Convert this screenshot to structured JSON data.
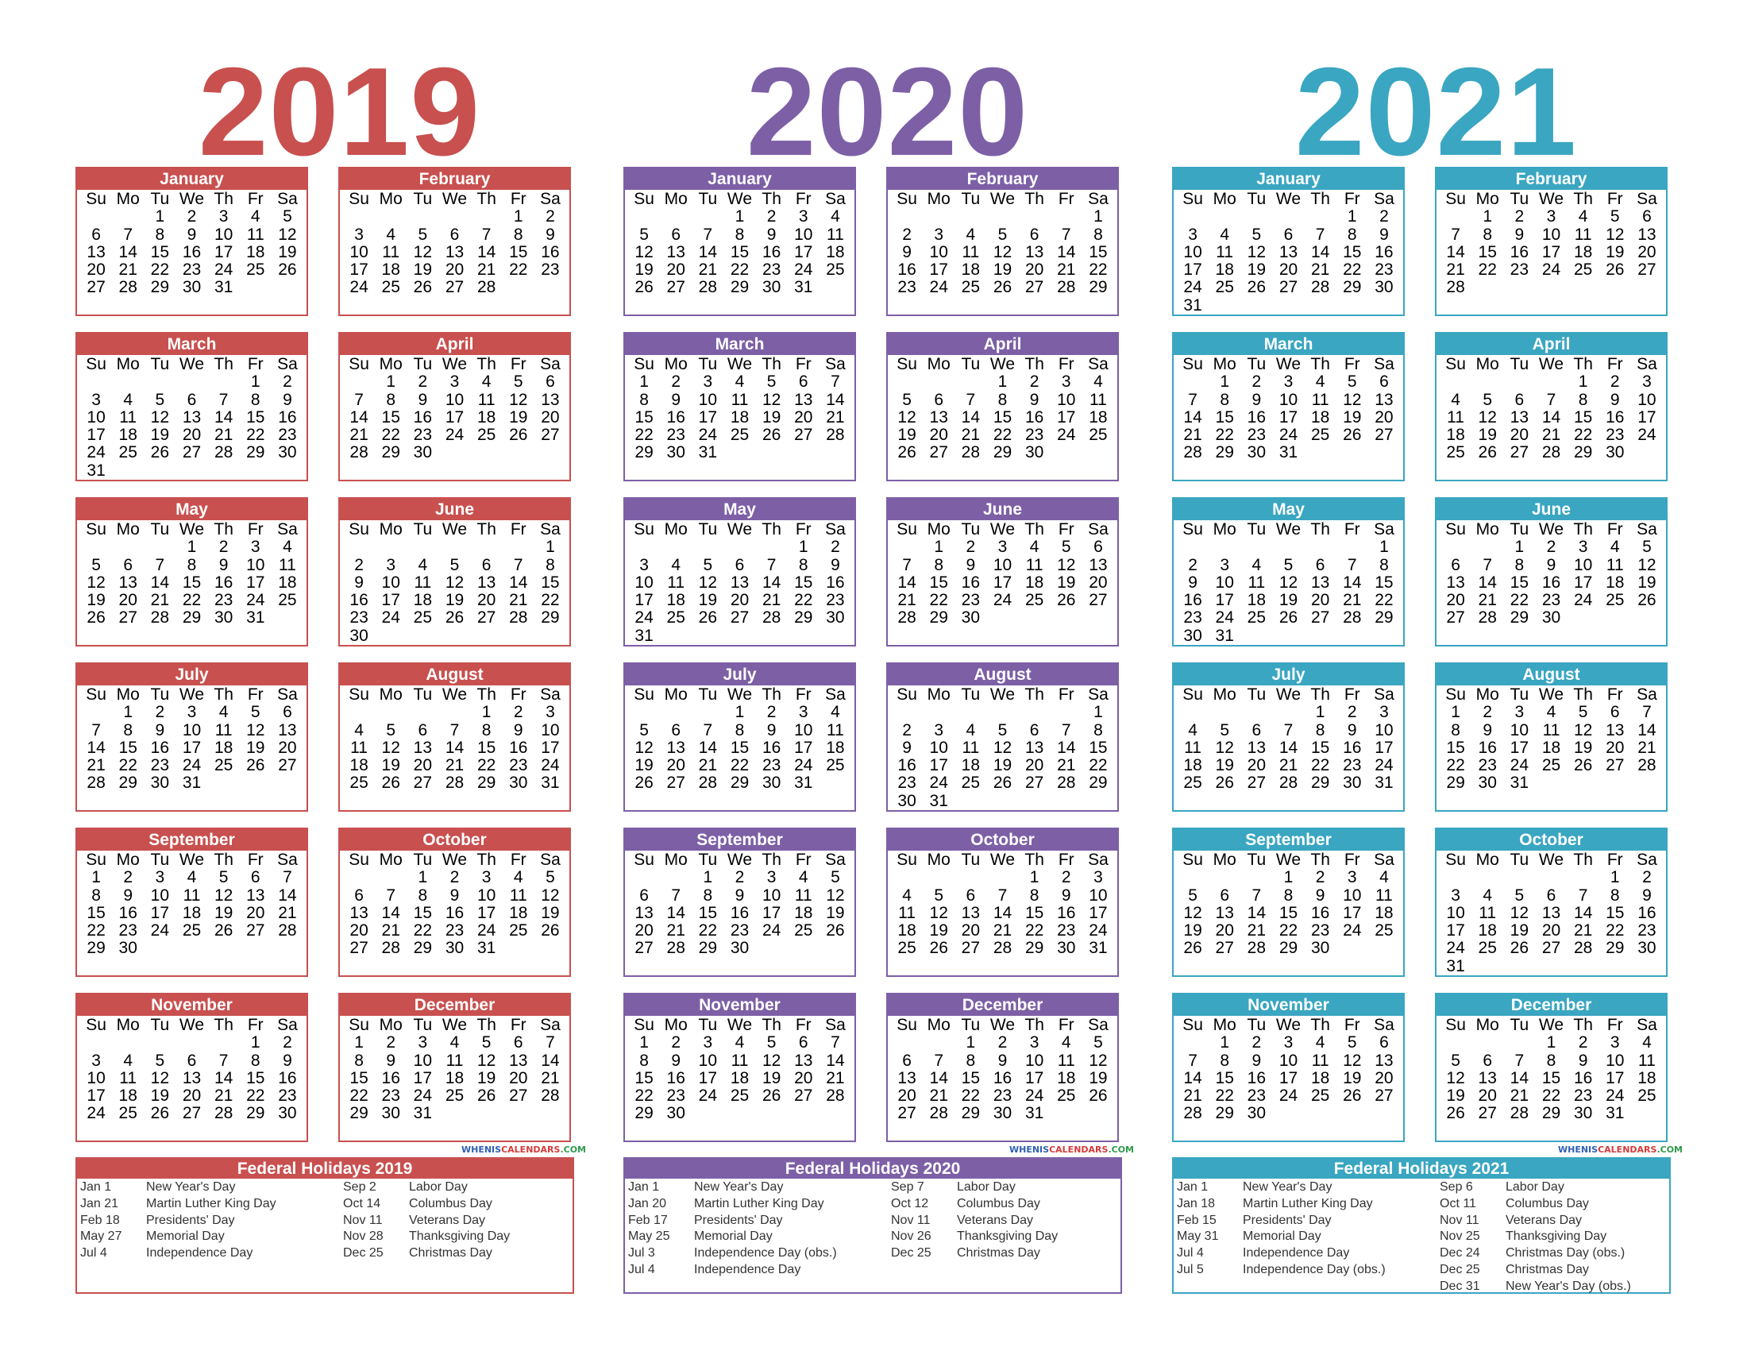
{
  "colors": {
    "2019": "#c8504f",
    "2020": "#7d5fa6",
    "2021": "#3aa6c1"
  },
  "watermark": {
    "a": "WHENIS",
    "b": "CALENDARS",
    "c": ".COM"
  },
  "weekdays": [
    "Su",
    "Mo",
    "Tu",
    "We",
    "Th",
    "Fr",
    "Sa"
  ],
  "years": [
    {
      "year": "2019",
      "color": "#c8504f",
      "months": [
        {
          "name": "January",
          "start": 2,
          "days": 31
        },
        {
          "name": "February",
          "start": 5,
          "days": 28
        },
        {
          "name": "March",
          "start": 5,
          "days": 31
        },
        {
          "name": "April",
          "start": 1,
          "days": 30
        },
        {
          "name": "May",
          "start": 3,
          "days": 31
        },
        {
          "name": "June",
          "start": 6,
          "days": 30
        },
        {
          "name": "July",
          "start": 1,
          "days": 31
        },
        {
          "name": "August",
          "start": 4,
          "days": 31
        },
        {
          "name": "September",
          "start": 0,
          "days": 30
        },
        {
          "name": "October",
          "start": 2,
          "days": 31
        },
        {
          "name": "November",
          "start": 5,
          "days": 30
        },
        {
          "name": "December",
          "start": 0,
          "days": 31
        }
      ],
      "holidays_title": "Federal Holidays 2019",
      "holidays": [
        {
          "date": "Jan 1",
          "name": "New Year's Day"
        },
        {
          "date": "Jan 21",
          "name": "Martin Luther King Day"
        },
        {
          "date": "Feb 18",
          "name": "Presidents' Day"
        },
        {
          "date": "May 27",
          "name": "Memorial Day"
        },
        {
          "date": "Jul 4",
          "name": "Independence Day"
        },
        {
          "date": "Sep 2",
          "name": "Labor Day"
        },
        {
          "date": "Oct 14",
          "name": "Columbus Day"
        },
        {
          "date": "Nov 11",
          "name": "Veterans Day"
        },
        {
          "date": "Nov 28",
          "name": "Thanksgiving Day"
        },
        {
          "date": "Dec 25",
          "name": "Christmas Day"
        }
      ],
      "holidays_split": 5
    },
    {
      "year": "2020",
      "color": "#7d5fa6",
      "months": [
        {
          "name": "January",
          "start": 3,
          "days": 31
        },
        {
          "name": "February",
          "start": 6,
          "days": 29
        },
        {
          "name": "March",
          "start": 0,
          "days": 31
        },
        {
          "name": "April",
          "start": 3,
          "days": 30
        },
        {
          "name": "May",
          "start": 5,
          "days": 31
        },
        {
          "name": "June",
          "start": 1,
          "days": 30
        },
        {
          "name": "July",
          "start": 3,
          "days": 31
        },
        {
          "name": "August",
          "start": 6,
          "days": 31
        },
        {
          "name": "September",
          "start": 2,
          "days": 30
        },
        {
          "name": "October",
          "start": 4,
          "days": 31
        },
        {
          "name": "November",
          "start": 0,
          "days": 30
        },
        {
          "name": "December",
          "start": 2,
          "days": 31
        }
      ],
      "holidays_title": "Federal Holidays 2020",
      "holidays": [
        {
          "date": "Jan 1",
          "name": "New Year's Day"
        },
        {
          "date": "Jan 20",
          "name": "Martin Luther King Day"
        },
        {
          "date": "Feb 17",
          "name": "Presidents' Day"
        },
        {
          "date": "May 25",
          "name": "Memorial Day"
        },
        {
          "date": "Jul 3",
          "name": "Independence Day (obs.)"
        },
        {
          "date": "Jul 4",
          "name": "Independence Day"
        },
        {
          "date": "Sep 7",
          "name": "Labor Day"
        },
        {
          "date": "Oct 12",
          "name": "Columbus Day"
        },
        {
          "date": "Nov 11",
          "name": "Veterans Day"
        },
        {
          "date": "Nov 26",
          "name": "Thanksgiving Day"
        },
        {
          "date": "Dec 25",
          "name": "Christmas Day"
        }
      ],
      "holidays_split": 6
    },
    {
      "year": "2021",
      "color": "#3aa6c1",
      "months": [
        {
          "name": "January",
          "start": 5,
          "days": 31
        },
        {
          "name": "February",
          "start": 1,
          "days": 28
        },
        {
          "name": "March",
          "start": 1,
          "days": 31
        },
        {
          "name": "April",
          "start": 4,
          "days": 30
        },
        {
          "name": "May",
          "start": 6,
          "days": 31
        },
        {
          "name": "June",
          "start": 2,
          "days": 30
        },
        {
          "name": "July",
          "start": 4,
          "days": 31
        },
        {
          "name": "August",
          "start": 0,
          "days": 31
        },
        {
          "name": "September",
          "start": 3,
          "days": 30
        },
        {
          "name": "October",
          "start": 5,
          "days": 31
        },
        {
          "name": "November",
          "start": 1,
          "days": 30
        },
        {
          "name": "December",
          "start": 3,
          "days": 31
        }
      ],
      "holidays_title": "Federal Holidays 2021",
      "holidays": [
        {
          "date": "Jan 1",
          "name": "New Year's Day"
        },
        {
          "date": "Jan 18",
          "name": "Martin Luther King Day"
        },
        {
          "date": "Feb 15",
          "name": "Presidents' Day"
        },
        {
          "date": "May 31",
          "name": "Memorial Day"
        },
        {
          "date": "Jul 4",
          "name": "Independence Day"
        },
        {
          "date": "Jul 5",
          "name": "Independence Day (obs.)"
        },
        {
          "date": "Sep 6",
          "name": "Labor Day"
        },
        {
          "date": "Oct 11",
          "name": "Columbus Day"
        },
        {
          "date": "Nov 11",
          "name": "Veterans Day"
        },
        {
          "date": "Nov 25",
          "name": "Thanksgiving Day"
        },
        {
          "date": "Dec 24",
          "name": "Christmas Day (obs.)"
        },
        {
          "date": "Dec 25",
          "name": "Christmas Day"
        },
        {
          "date": "Dec 31",
          "name": "New Year's Day (obs.)"
        }
      ],
      "holidays_split": 6
    }
  ]
}
